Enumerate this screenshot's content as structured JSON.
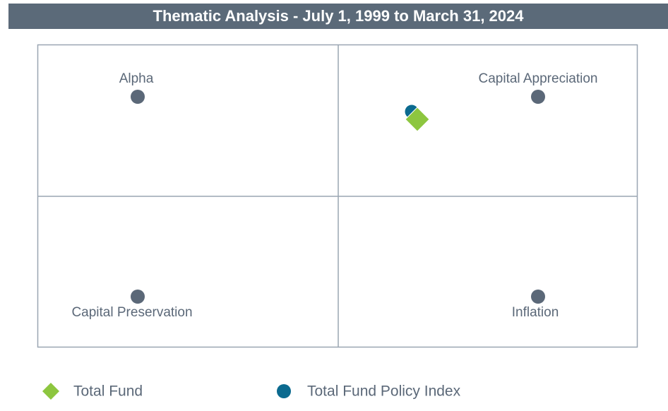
{
  "title": "Thematic Analysis - July 1, 1999 to March 31, 2024",
  "quadrants": [
    "Alpha",
    "Capital Appreciation",
    "Capital Preservation",
    "Inflation"
  ],
  "legend": [
    "Total Fund",
    "Total Fund Policy Index"
  ]
}
